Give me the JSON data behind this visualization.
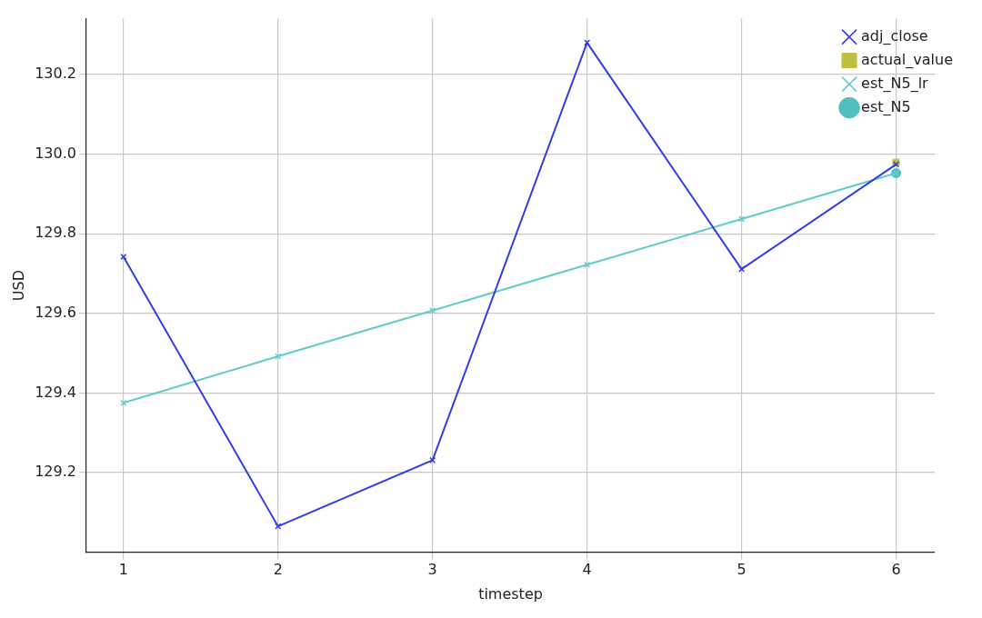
{
  "chart_data": {
    "type": "line",
    "xlabel": "timestep",
    "ylabel": "USD",
    "x": [
      1,
      2,
      3,
      4,
      5,
      6
    ],
    "xlim": [
      0.76,
      6.25
    ],
    "xticks": [
      1,
      2,
      3,
      4,
      5,
      6
    ],
    "ylim": [
      129.0,
      130.34
    ],
    "yticks": [
      129.2,
      129.4,
      129.6,
      129.8,
      {
        "value": 130.0,
        "label": "130.0"
      },
      130.2
    ],
    "grid": true,
    "legend": "top right",
    "line_style": "solid",
    "series": [
      {
        "name": "adj_close",
        "color": "#2f3ee6",
        "marker": "cross",
        "values": [
          129.742,
          129.065,
          129.231,
          130.28,
          129.711,
          129.974
        ]
      },
      {
        "name": "actual_value",
        "color": "#bfbf3f",
        "marker": "square",
        "x": [
          6
        ],
        "values": [
          129.979
        ]
      },
      {
        "name": "est_N5_lr",
        "color": "#62cccc",
        "marker": "cross",
        "values": [
          129.375,
          129.492,
          129.607,
          129.722,
          129.837,
          129.952
        ]
      },
      {
        "name": "est_N5",
        "color": "#4fbfbf",
        "marker": "circle",
        "x": [
          6
        ],
        "values": [
          129.952
        ]
      }
    ]
  }
}
